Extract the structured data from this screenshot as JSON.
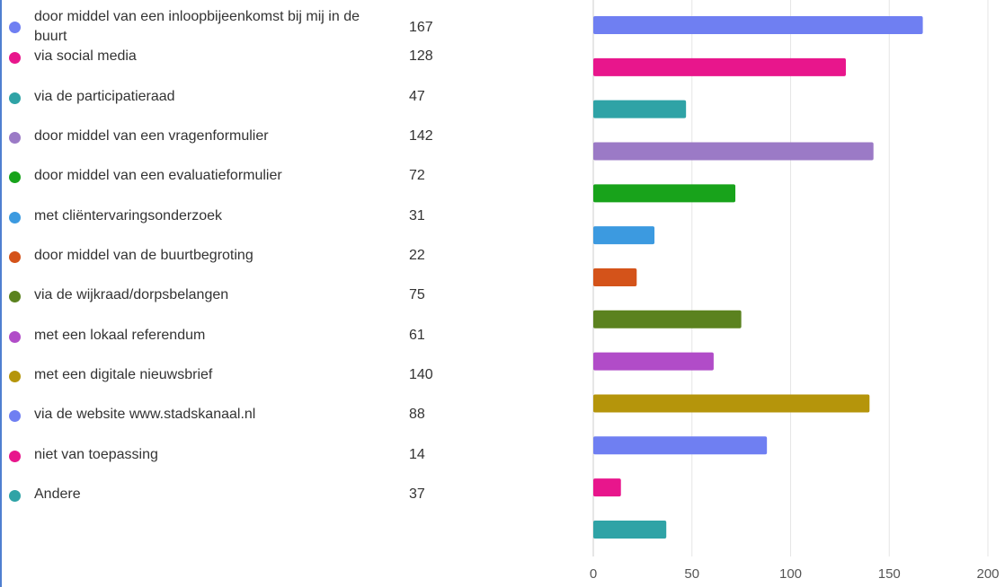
{
  "chart_data": {
    "type": "bar",
    "orientation": "horizontal",
    "categories": [
      "door middel van een inloopbijeenkomst bij mij in de buurt",
      "via social media",
      "via de participatieraad",
      "door middel van een vragenformulier",
      "door middel van een evaluatieformulier",
      "met cliëntervaringsonderzoek",
      "door middel van de buurtbegroting",
      "via de wijkraad/dorpsbelangen",
      "met een lokaal referendum",
      "met een digitale nieuwsbrief",
      "via de website www.stadskanaal.nl",
      "niet van toepassing",
      "Andere"
    ],
    "values": [
      167,
      128,
      47,
      142,
      72,
      31,
      22,
      75,
      61,
      140,
      88,
      14,
      37
    ],
    "colors": [
      "#6f7ff2",
      "#e8168c",
      "#2fa3a6",
      "#9b7ac6",
      "#18a31b",
      "#3c9ae0",
      "#d4531a",
      "#5b821f",
      "#b14cc8",
      "#b5950b",
      "#6f7ff2",
      "#e8168c",
      "#2fa3a6"
    ],
    "xlim": [
      0,
      200
    ],
    "xticks": [
      0,
      50,
      100,
      150,
      200
    ],
    "grid": true,
    "legend": "left"
  }
}
